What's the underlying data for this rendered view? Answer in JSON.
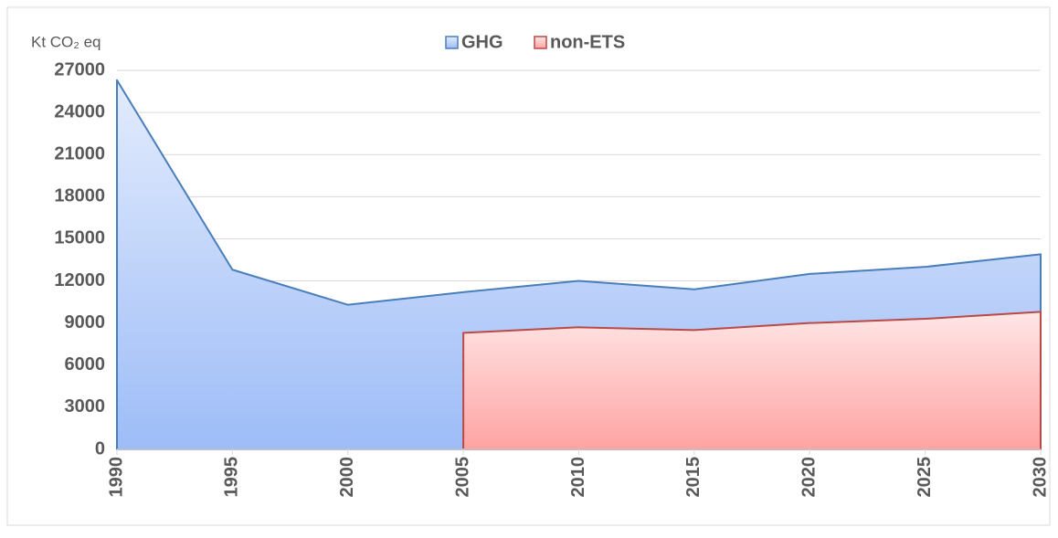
{
  "chart_data": {
    "type": "area",
    "y_axis_label": "Kt CO₂ eq",
    "categories": [
      "1990",
      "1995",
      "2000",
      "2005",
      "2010",
      "2015",
      "2020",
      "2025",
      "2030"
    ],
    "series": [
      {
        "name": "GHG",
        "color": "#4a7ebb",
        "fill": "#a9c4f5",
        "values": [
          26300,
          12800,
          10300,
          11200,
          12000,
          11400,
          12500,
          13000,
          13900
        ]
      },
      {
        "name": "non-ETS",
        "color": "#b94a48",
        "fill": "#ffb3b3",
        "values": [
          null,
          null,
          null,
          8300,
          8700,
          8500,
          9000,
          9300,
          9800
        ]
      }
    ],
    "ylim": [
      0,
      27000
    ],
    "yticks": [
      0,
      3000,
      6000,
      9000,
      12000,
      15000,
      18000,
      21000,
      24000,
      27000
    ],
    "grid": true,
    "legend": "top"
  }
}
